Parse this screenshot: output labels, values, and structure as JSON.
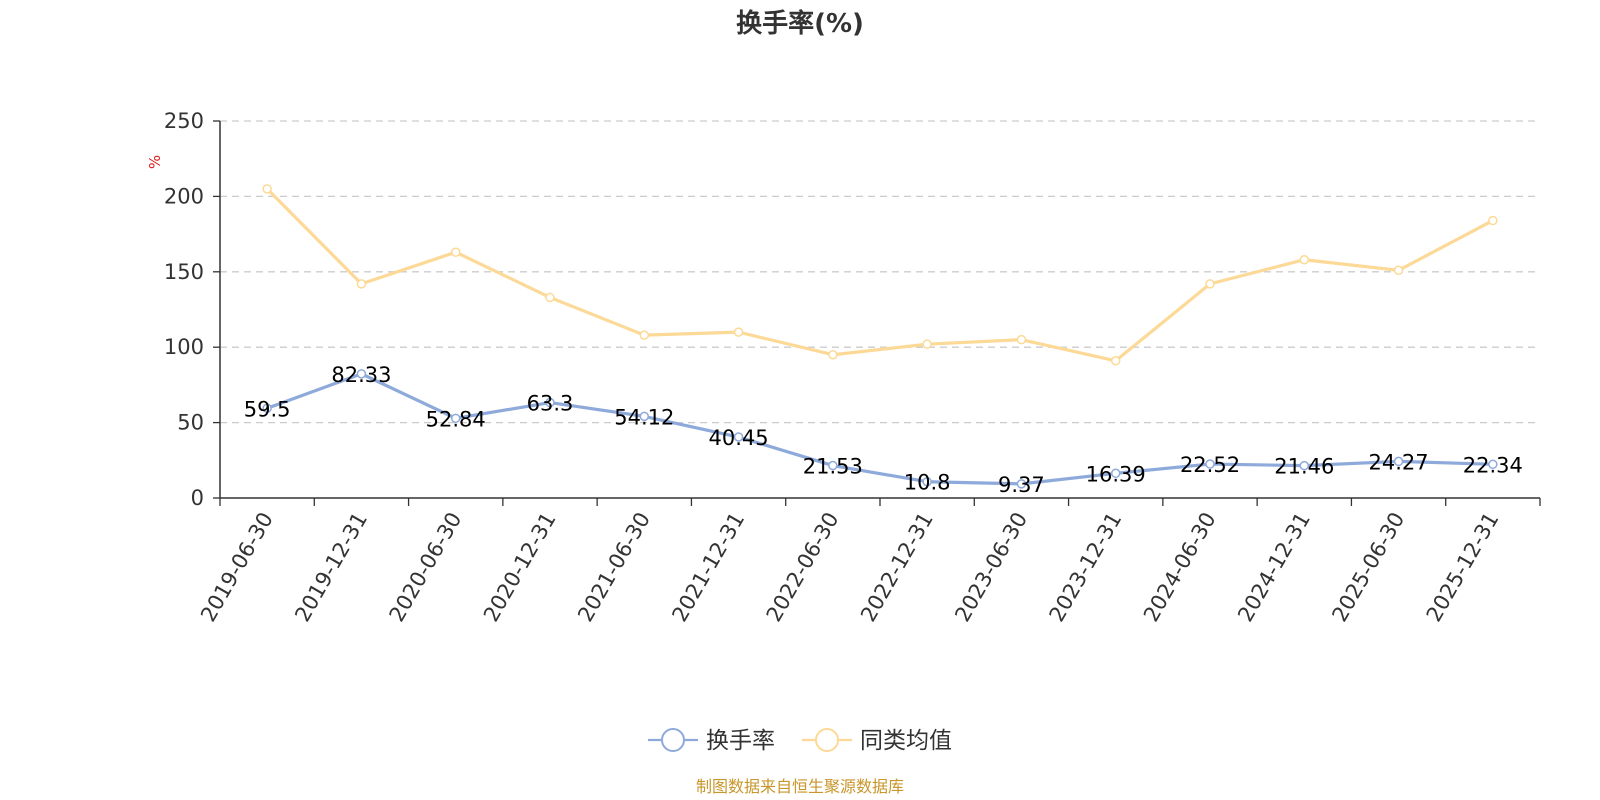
{
  "chart_data": {
    "type": "line",
    "title": "换手率(%)",
    "unit_label": "%",
    "categories": [
      "2019-06-30",
      "2019-12-31",
      "2020-06-30",
      "2020-12-31",
      "2021-06-30",
      "2021-12-31",
      "2022-06-30",
      "2022-12-31",
      "2023-06-30",
      "2023-12-31",
      "2024-06-30",
      "2024-12-31",
      "2025-06-30",
      "2025-12-31"
    ],
    "series": [
      {
        "name": "换手率",
        "color": "#8eaadb",
        "values": [
          59.5,
          82.33,
          52.84,
          63.3,
          54.12,
          40.45,
          21.53,
          10.8,
          9.37,
          16.39,
          22.52,
          21.46,
          24.27,
          22.34
        ],
        "labels": [
          "59.5",
          "82.33",
          "52.84",
          "63.3",
          "54.12",
          "40.45",
          "21.53",
          "10.8",
          "9.37",
          "16.39",
          "22.52",
          "21.46",
          "24.27",
          "22.34"
        ]
      },
      {
        "name": "同类均值",
        "color": "#fcd996",
        "values": [
          205,
          142,
          163,
          133,
          108,
          110,
          95,
          102,
          105,
          91,
          142,
          158,
          151,
          184
        ]
      }
    ],
    "ylim": [
      0,
      250
    ],
    "yticks": [
      "0",
      "50",
      "100",
      "150",
      "200",
      "250"
    ],
    "grid": true,
    "legend_position": "bottom-center"
  },
  "colors": {
    "unit_label": "#e02020",
    "source_text": "#c8962a",
    "grid": "#cccccc",
    "axis": "#333333"
  },
  "source": "制图数据来自恒生聚源数据库"
}
